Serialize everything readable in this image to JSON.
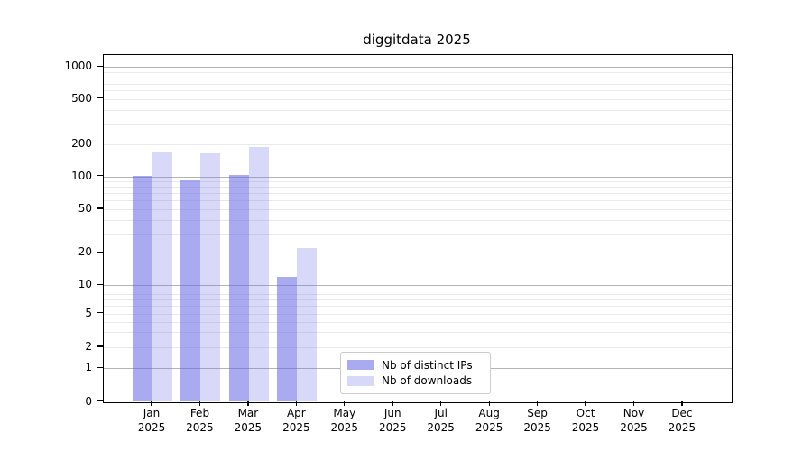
{
  "title": "diggitdata 2025",
  "chart_data": {
    "type": "bar",
    "title": "diggitdata 2025",
    "xlabel": "",
    "ylabel": "",
    "y_scale": "symlog-like (linear 0-1, logarithmic above 1)",
    "y_ticks": [
      0,
      1,
      2,
      5,
      10,
      20,
      50,
      100,
      200,
      500,
      1000
    ],
    "ylim": [
      0,
      1300
    ],
    "grid": "horizontal only, dark major lines at 1/10/100/1000, light minor lines at 2-9 per decade",
    "legend_position": "inside plot, bottom center-right",
    "categories": [
      {
        "month": "Jan",
        "year": "2025"
      },
      {
        "month": "Feb",
        "year": "2025"
      },
      {
        "month": "Mar",
        "year": "2025"
      },
      {
        "month": "Apr",
        "year": "2025"
      },
      {
        "month": "May",
        "year": "2025"
      },
      {
        "month": "Jun",
        "year": "2025"
      },
      {
        "month": "Jul",
        "year": "2025"
      },
      {
        "month": "Aug",
        "year": "2025"
      },
      {
        "month": "Sep",
        "year": "2025"
      },
      {
        "month": "Oct",
        "year": "2025"
      },
      {
        "month": "Nov",
        "year": "2025"
      },
      {
        "month": "Dec",
        "year": "2025"
      }
    ],
    "series": [
      {
        "name": "Nb of distinct IPs",
        "color": "rgba(100,100,230,0.55)",
        "values": [
          101,
          92,
          103,
          12,
          0,
          0,
          0,
          0,
          0,
          0,
          0,
          0
        ]
      },
      {
        "name": "Nb of downloads",
        "color": "rgba(100,100,230,0.25)",
        "values": [
          172,
          165,
          189,
          22,
          0,
          0,
          0,
          0,
          0,
          0,
          0,
          0
        ]
      }
    ]
  },
  "colors": {
    "background": "#ffffff",
    "axis": "#000000",
    "text": "#000000",
    "grid_major": "#b4b4b4",
    "grid_minor": "#e9e9e9",
    "legend_border": "#cccccc",
    "bar_distinct_ips": "rgba(100,100,230,0.55)",
    "bar_downloads": "rgba(100,100,230,0.25)"
  }
}
